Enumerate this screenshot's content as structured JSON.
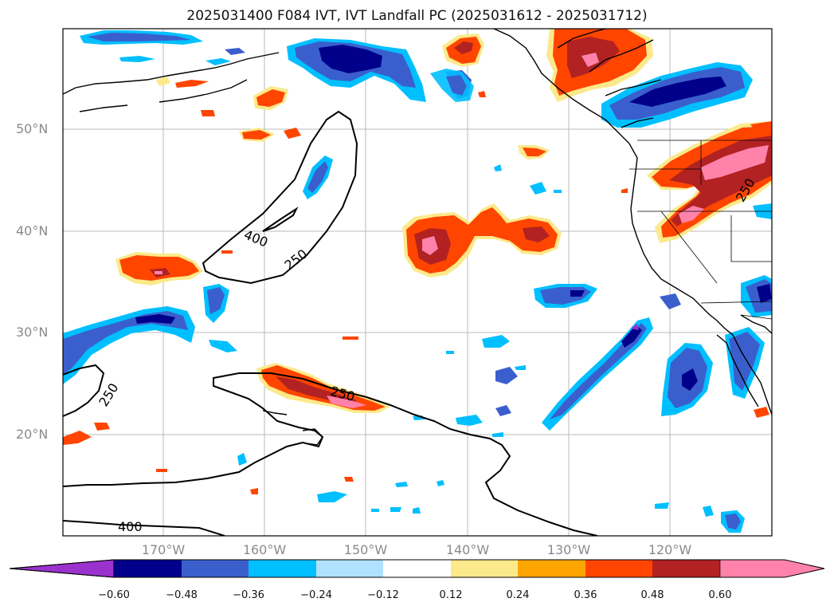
{
  "title": "2025031400 F084 IVT, IVT Landfall PC (2025031612 - 2025031712)",
  "axes": {
    "lat_labels": [
      "50°N",
      "40°N",
      "30°N",
      "20°N"
    ],
    "lon_labels": [
      "170°W",
      "160°W",
      "150°W",
      "140°W",
      "130°W",
      "120°W"
    ]
  },
  "contour_labels": [
    "400",
    "250",
    "250",
    "250",
    "400",
    "250"
  ],
  "colorbar": {
    "tick_labels": [
      "−0.60",
      "−0.48",
      "−0.36",
      "−0.24",
      "−0.12",
      "0.12",
      "0.24",
      "0.36",
      "0.48",
      "0.60"
    ],
    "colors": [
      "#9a32cd",
      "#00008b",
      "#3a5fcd",
      "#00bfff",
      "#b0e2ff",
      "#ffffff",
      "#fce98a",
      "#ffa500",
      "#ff4500",
      "#b22222",
      "#ff82ab"
    ]
  },
  "colors": {
    "neg_extreme": "#9a32cd",
    "neg_strong": "#00008b",
    "neg_mid": "#3a5fcd",
    "neg_light": "#00bfff",
    "neg_pale": "#b0e2ff",
    "pos_pale": "#fce98a",
    "pos_light": "#ffa500",
    "pos_mid": "#ff4500",
    "pos_strong": "#b22222",
    "pos_extreme": "#ff82ab"
  }
}
